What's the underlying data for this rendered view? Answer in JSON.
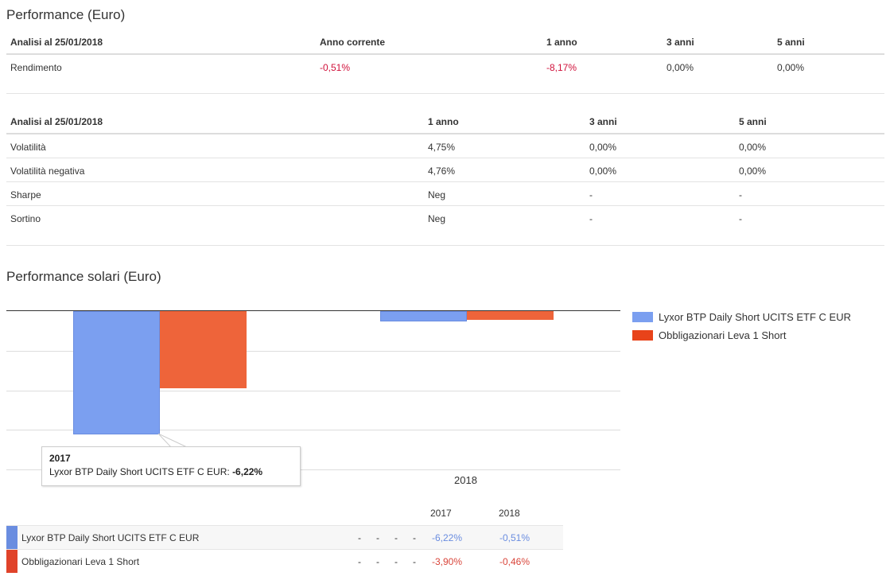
{
  "performance": {
    "title": "Performance (Euro)",
    "headers": [
      "Analisi al 25/01/2018",
      "Anno corrente",
      "1 anno",
      "3 anni",
      "5 anni"
    ],
    "rows": [
      {
        "label": "Rendimento",
        "values": [
          "-0,51%",
          "-8,17%",
          "0,00%",
          "0,00%"
        ]
      }
    ]
  },
  "risk": {
    "headers": [
      "Analisi al 25/01/2018",
      "1 anno",
      "3 anni",
      "5 anni"
    ],
    "rows": [
      {
        "label": "Volatilità",
        "values": [
          "4,75%",
          "0,00%",
          "0,00%"
        ]
      },
      {
        "label": "Volatilità negativa",
        "values": [
          "4,76%",
          "0,00%",
          "0,00%"
        ]
      },
      {
        "label": "Sharpe",
        "values": [
          "Neg",
          "-",
          "-"
        ]
      },
      {
        "label": "Sortino",
        "values": [
          "Neg",
          "-",
          "-"
        ]
      }
    ]
  },
  "solar": {
    "title": "Performance solari (Euro)"
  },
  "chart_data": {
    "type": "bar",
    "categories": [
      "2017",
      "2018"
    ],
    "series": [
      {
        "name": "Lyxor BTP Daily Short UCITS ETF C EUR",
        "values": [
          -6.22,
          -0.51
        ],
        "color": "#7b9ff0"
      },
      {
        "name": "Obbligazionari Leva 1 Short",
        "values": [
          -3.9,
          -0.46
        ],
        "color": "#ee643a"
      }
    ],
    "ylim": [
      -8,
      0
    ],
    "grid": true,
    "legend": "right",
    "tooltip": {
      "title": "2017",
      "label": "Lyxor BTP Daily Short UCITS ETF C EUR:",
      "value": "-6,22%"
    }
  },
  "bottom_table": {
    "headers": [
      "2017",
      "2018"
    ],
    "rows": [
      {
        "label": "Lyxor BTP Daily Short UCITS ETF C EUR",
        "dashes": [
          "-",
          "-",
          "-",
          "-"
        ],
        "values": [
          "-6,22%",
          "-0,51%"
        ],
        "color": "#6a8de0"
      },
      {
        "label": "Obbligazionari Leva 1 Short",
        "dashes": [
          "-",
          "-",
          "-",
          "-"
        ],
        "values": [
          "-3,90%",
          "-0,46%"
        ],
        "color": "#e0432a"
      }
    ]
  }
}
